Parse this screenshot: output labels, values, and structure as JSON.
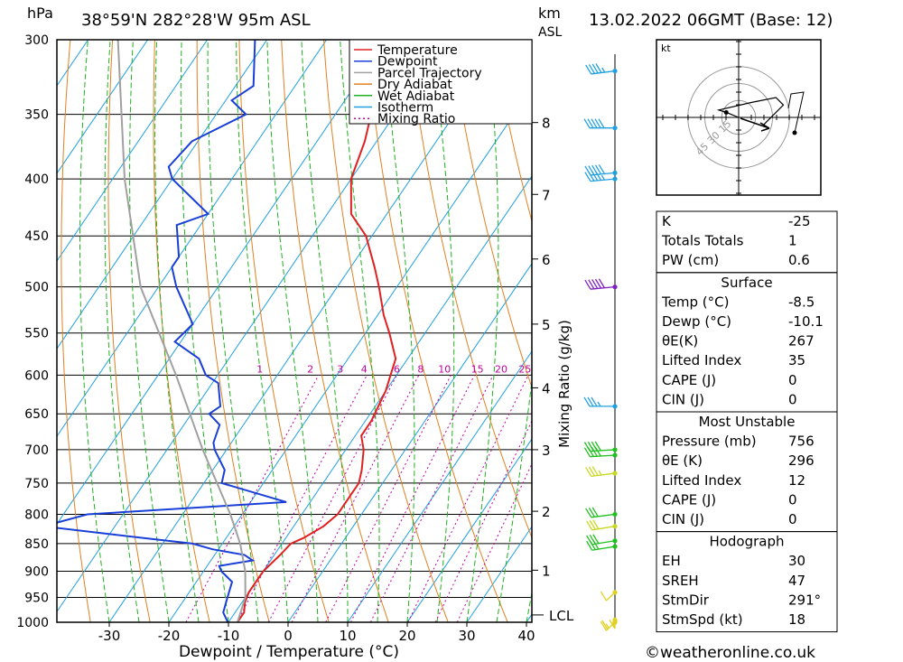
{
  "header": {
    "hpa_unit": "hPa",
    "location": "38°59'N  282°28'W  95m  ASL",
    "km_unit": "km",
    "asl_unit": "ASL",
    "datetime": "13.02.2022  06GMT  (Base: 12)"
  },
  "axes": {
    "xlabel": "Dewpoint / Temperature (°C)",
    "mixing_label": "Mixing Ratio (g/kg)",
    "lcl_label": "LCL",
    "x_ticks": [
      "-30",
      "-20",
      "-10",
      "0",
      "10",
      "20",
      "30",
      "40"
    ],
    "x_values": [
      -30,
      -20,
      -10,
      0,
      10,
      20,
      30,
      40
    ],
    "p_ticks": [
      "300",
      "350",
      "400",
      "450",
      "500",
      "550",
      "600",
      "650",
      "700",
      "750",
      "800",
      "850",
      "900",
      "950",
      "1000"
    ],
    "p_values": [
      300,
      350,
      400,
      450,
      500,
      550,
      600,
      650,
      700,
      750,
      800,
      850,
      900,
      950,
      1000
    ],
    "km_ticks": [
      {
        "label": "8",
        "p": 356
      },
      {
        "label": "7",
        "p": 413
      },
      {
        "label": "6",
        "p": 472
      },
      {
        "label": "5",
        "p": 540
      },
      {
        "label": "4",
        "p": 616
      },
      {
        "label": "3",
        "p": 700
      },
      {
        "label": "2",
        "p": 795
      },
      {
        "label": "1",
        "p": 898
      }
    ],
    "mixing_ticks": [
      {
        "label": "1",
        "t": -5.5
      },
      {
        "label": "2",
        "t": 3
      },
      {
        "label": "3",
        "t": 8
      },
      {
        "label": "4",
        "t": 12
      },
      {
        "label": "6",
        "t": 17.5
      },
      {
        "label": "8",
        "t": 21.5
      },
      {
        "label": "10",
        "t": 25.5
      },
      {
        "label": "15",
        "t": 31
      },
      {
        "label": "20",
        "t": 35
      },
      {
        "label": "25",
        "t": 39
      }
    ]
  },
  "legend": [
    {
      "label": "Temperature",
      "color": "#e02020",
      "dash": ""
    },
    {
      "label": "Dewpoint",
      "color": "#1a3fd8",
      "dash": ""
    },
    {
      "label": "Parcel Trajectory",
      "color": "#a0a0a0",
      "dash": ""
    },
    {
      "label": "Dry Adiabat",
      "color": "#e08020",
      "dash": ""
    },
    {
      "label": "Wet Adiabat",
      "color": "#20b020",
      "dash": ""
    },
    {
      "label": "Isotherm",
      "color": "#20a0e0",
      "dash": ""
    },
    {
      "label": "Mixing Ratio",
      "color": "#c000a0",
      "dash": "2,3"
    }
  ],
  "chart_data": {
    "type": "line",
    "x_unit": "°C",
    "y_unit": "hPa",
    "xlim": [
      -40,
      40
    ],
    "ylim": [
      1000,
      300
    ],
    "series": [
      {
        "name": "Temperature",
        "color": "#e02020",
        "points": [
          [
            300,
            -49
          ],
          [
            320,
            -46
          ],
          [
            335,
            -44
          ],
          [
            350,
            -44
          ],
          [
            370,
            -42
          ],
          [
            400,
            -40
          ],
          [
            430,
            -36
          ],
          [
            450,
            -31
          ],
          [
            480,
            -26
          ],
          [
            500,
            -23
          ],
          [
            530,
            -19
          ],
          [
            550,
            -16
          ],
          [
            580,
            -12
          ],
          [
            600,
            -11
          ],
          [
            620,
            -10
          ],
          [
            640,
            -9.5
          ],
          [
            660,
            -9
          ],
          [
            680,
            -9
          ],
          [
            700,
            -7
          ],
          [
            730,
            -5
          ],
          [
            750,
            -4
          ],
          [
            780,
            -4
          ],
          [
            800,
            -4
          ],
          [
            820,
            -5
          ],
          [
            840,
            -7
          ],
          [
            850,
            -8.5
          ],
          [
            870,
            -9
          ],
          [
            900,
            -10
          ],
          [
            920,
            -10
          ],
          [
            940,
            -10
          ],
          [
            960,
            -9.5
          ],
          [
            980,
            -8.5
          ],
          [
            1000,
            -8.5
          ]
        ]
      },
      {
        "name": "Dewpoint",
        "color": "#1a3fd8",
        "points": [
          [
            300,
            -72
          ],
          [
            330,
            -67
          ],
          [
            340,
            -69
          ],
          [
            350,
            -65
          ],
          [
            370,
            -71
          ],
          [
            390,
            -72
          ],
          [
            400,
            -70
          ],
          [
            430,
            -60
          ],
          [
            440,
            -64
          ],
          [
            470,
            -60
          ],
          [
            480,
            -60
          ],
          [
            500,
            -57
          ],
          [
            540,
            -50
          ],
          [
            560,
            -51
          ],
          [
            580,
            -45
          ],
          [
            600,
            -42
          ],
          [
            610,
            -39
          ],
          [
            640,
            -36
          ],
          [
            650,
            -37
          ],
          [
            665,
            -34
          ],
          [
            690,
            -33
          ],
          [
            700,
            -32
          ],
          [
            730,
            -28
          ],
          [
            750,
            -27
          ],
          [
            780,
            -14
          ],
          [
            800,
            -46
          ],
          [
            820,
            -52
          ],
          [
            840,
            -34
          ],
          [
            850,
            -25
          ],
          [
            860,
            -21
          ],
          [
            870,
            -15
          ],
          [
            880,
            -13
          ],
          [
            890,
            -18
          ],
          [
            900,
            -17
          ],
          [
            920,
            -14
          ],
          [
            950,
            -13
          ],
          [
            980,
            -12
          ],
          [
            1000,
            -10.1
          ]
        ]
      },
      {
        "name": "Parcel Trajectory",
        "color": "#a0a0a0",
        "points": [
          [
            300,
            -95
          ],
          [
            400,
            -78
          ],
          [
            500,
            -63
          ],
          [
            600,
            -47
          ],
          [
            700,
            -34
          ],
          [
            800,
            -22
          ],
          [
            850,
            -17
          ],
          [
            900,
            -13
          ],
          [
            950,
            -10
          ],
          [
            1000,
            -8.5
          ]
        ]
      }
    ],
    "wind_barbs": [
      {
        "p": 320,
        "dir": 250,
        "spd_kt": 45,
        "color": "#20a0e0"
      },
      {
        "p": 360,
        "dir": 270,
        "spd_kt": 50,
        "color": "#20a0e0"
      },
      {
        "p": 395,
        "dir": 255,
        "spd_kt": 50,
        "color": "#20a0e0"
      },
      {
        "p": 400,
        "dir": 255,
        "spd_kt": 45,
        "color": "#20a0e0"
      },
      {
        "p": 500,
        "dir": 255,
        "spd_kt": 50,
        "color": "#8020c0"
      },
      {
        "p": 640,
        "dir": 270,
        "spd_kt": 35,
        "color": "#20a0e0"
      },
      {
        "p": 700,
        "dir": 260,
        "spd_kt": 40,
        "color": "#20c020"
      },
      {
        "p": 708,
        "dir": 260,
        "spd_kt": 40,
        "color": "#20c020"
      },
      {
        "p": 735,
        "dir": 250,
        "spd_kt": 35,
        "color": "#c8d820"
      },
      {
        "p": 800,
        "dir": 250,
        "spd_kt": 30,
        "color": "#20c020"
      },
      {
        "p": 820,
        "dir": 245,
        "spd_kt": 30,
        "color": "#c8d820"
      },
      {
        "p": 845,
        "dir": 245,
        "spd_kt": 30,
        "color": "#20c020"
      },
      {
        "p": 855,
        "dir": 245,
        "spd_kt": 30,
        "color": "#20c020"
      },
      {
        "p": 940,
        "dir": 200,
        "spd_kt": 10,
        "color": "#e0d020"
      },
      {
        "p": 995,
        "dir": 180,
        "spd_kt": 15,
        "color": "#e0d020"
      },
      {
        "p": 1010,
        "dir": 200,
        "spd_kt": 25,
        "color": "#e0d020"
      }
    ],
    "hodograph": {
      "unit_label": "kt",
      "ring_labels": [
        {
          "label": "15",
          "r": 15
        },
        {
          "label": "30",
          "r": 30
        },
        {
          "label": "45",
          "r": 45
        }
      ],
      "points": [
        [
          0,
          0
        ],
        [
          -5,
          2
        ],
        [
          -8,
          3
        ],
        [
          5,
          6
        ],
        [
          15,
          8
        ],
        [
          18,
          5
        ],
        [
          10,
          -3
        ]
      ]
    }
  },
  "indices": {
    "block1": [
      {
        "label": "K",
        "value": "-25"
      },
      {
        "label": "Totals Totals",
        "value": "1"
      },
      {
        "label": "PW (cm)",
        "value": "0.6"
      }
    ],
    "surface": {
      "title": "Surface",
      "rows": [
        {
          "label": "Temp (°C)",
          "value": "-8.5"
        },
        {
          "label": "Dewp (°C)",
          "value": "-10.1"
        },
        {
          "label": "θE(K)",
          "value": "267"
        },
        {
          "label": "Lifted Index",
          "value": "35"
        },
        {
          "label": "CAPE (J)",
          "value": "0"
        },
        {
          "label": "CIN (J)",
          "value": "0"
        }
      ]
    },
    "most_unstable": {
      "title": "Most Unstable",
      "rows": [
        {
          "label": "Pressure (mb)",
          "value": "756"
        },
        {
          "label": "θE (K)",
          "value": "296"
        },
        {
          "label": "Lifted Index",
          "value": "12"
        },
        {
          "label": "CAPE (J)",
          "value": "0"
        },
        {
          "label": "CIN (J)",
          "value": "0"
        }
      ]
    },
    "hodograph": {
      "title": "Hodograph",
      "rows": [
        {
          "label": "EH",
          "value": "30"
        },
        {
          "label": "SREH",
          "value": "47"
        },
        {
          "label": "StmDir",
          "value": "291°"
        },
        {
          "label": "StmSpd (kt)",
          "value": "18"
        }
      ]
    }
  },
  "footer": {
    "copyright": "©weatheronline.co.uk"
  }
}
